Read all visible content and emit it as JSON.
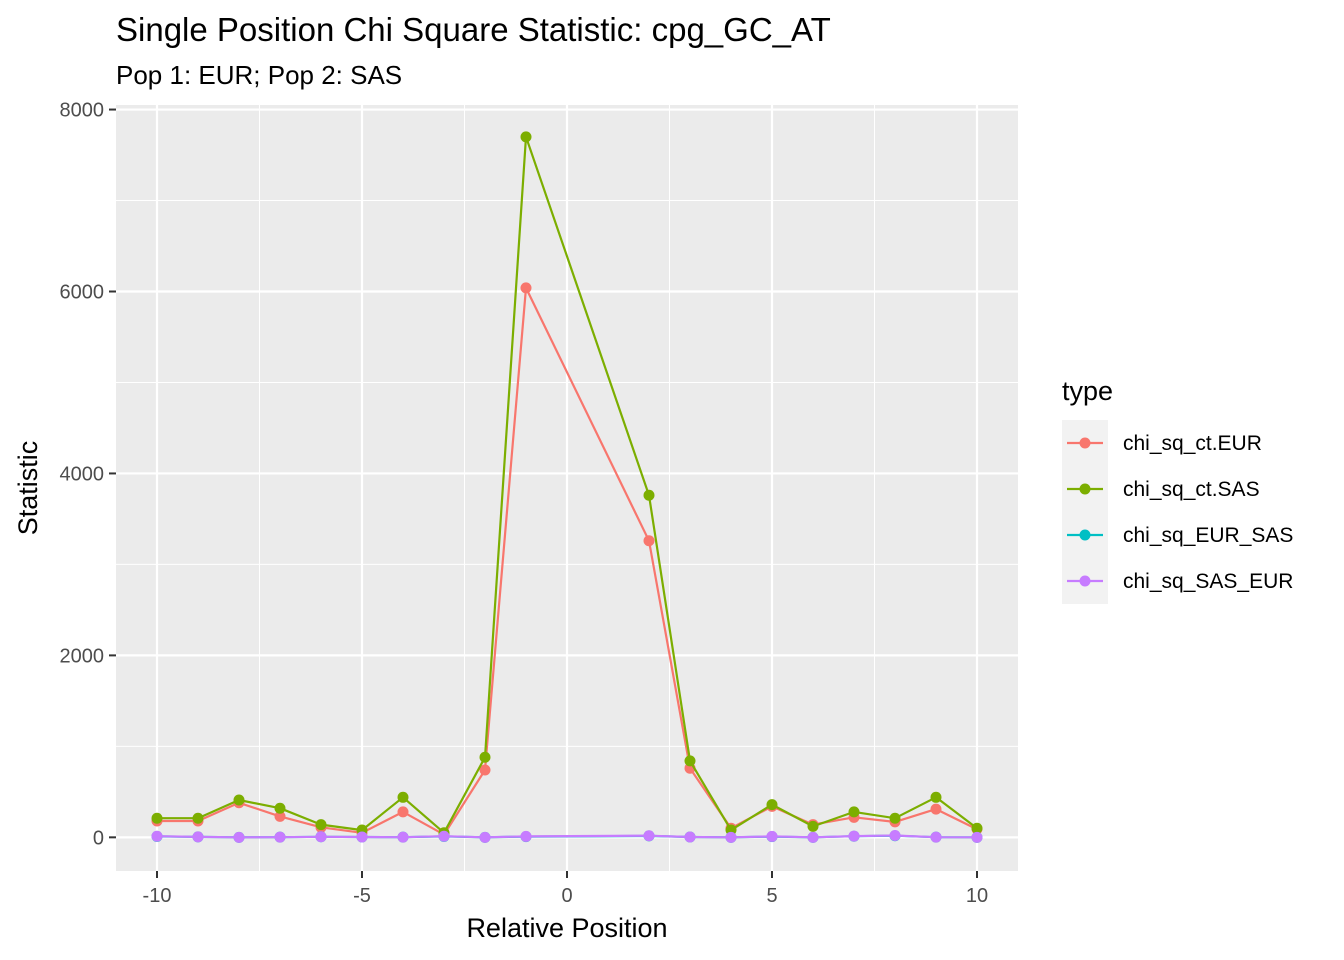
{
  "chart_data": {
    "type": "line",
    "title": "Single Position Chi Square Statistic: cpg_GC_AT",
    "subtitle": "Pop 1: EUR; Pop 2: SAS",
    "xlabel": "Relative Position",
    "ylabel": "Statistic",
    "xlim": [
      -11,
      11
    ],
    "ylim": [
      -370,
      8050
    ],
    "x_ticks": [
      -10,
      -5,
      0,
      5,
      10
    ],
    "x_tick_labels": [
      "-10",
      "-5",
      "0",
      "5",
      "10"
    ],
    "y_ticks": [
      0,
      2000,
      4000,
      6000,
      8000
    ],
    "y_tick_labels": [
      "0",
      "2000",
      "4000",
      "6000",
      "8000"
    ],
    "grid": true,
    "panel_background": "#ebebeb",
    "legend": {
      "title": "type",
      "placement": "right"
    },
    "x": [
      -10,
      -9,
      -8,
      -7,
      -6,
      -5,
      -4,
      -3,
      -2,
      -1,
      2,
      3,
      4,
      5,
      6,
      7,
      8,
      9,
      10
    ],
    "series": [
      {
        "name": "chi_sq_ct.EUR",
        "color": "#F8766D",
        "values": [
          180,
          180,
          380,
          230,
          110,
          50,
          280,
          30,
          740,
          6040,
          3260,
          760,
          100,
          340,
          140,
          220,
          170,
          310,
          90
        ]
      },
      {
        "name": "chi_sq_ct.SAS",
        "color": "#7CAE00",
        "values": [
          210,
          210,
          410,
          320,
          140,
          80,
          440,
          50,
          880,
          7700,
          3760,
          840,
          80,
          360,
          120,
          280,
          210,
          440,
          100
        ]
      },
      {
        "name": "chi_sq_EUR_SAS",
        "color": "#00BFC4",
        "values": [
          10,
          5,
          0,
          2,
          6,
          4,
          2,
          10,
          0,
          8,
          16,
          4,
          0,
          8,
          0,
          12,
          18,
          2,
          0
        ]
      },
      {
        "name": "chi_sq_SAS_EUR",
        "color": "#C77CFF",
        "values": [
          12,
          5,
          0,
          2,
          6,
          4,
          2,
          12,
          0,
          10,
          18,
          4,
          0,
          10,
          0,
          14,
          20,
          2,
          0
        ]
      }
    ]
  }
}
